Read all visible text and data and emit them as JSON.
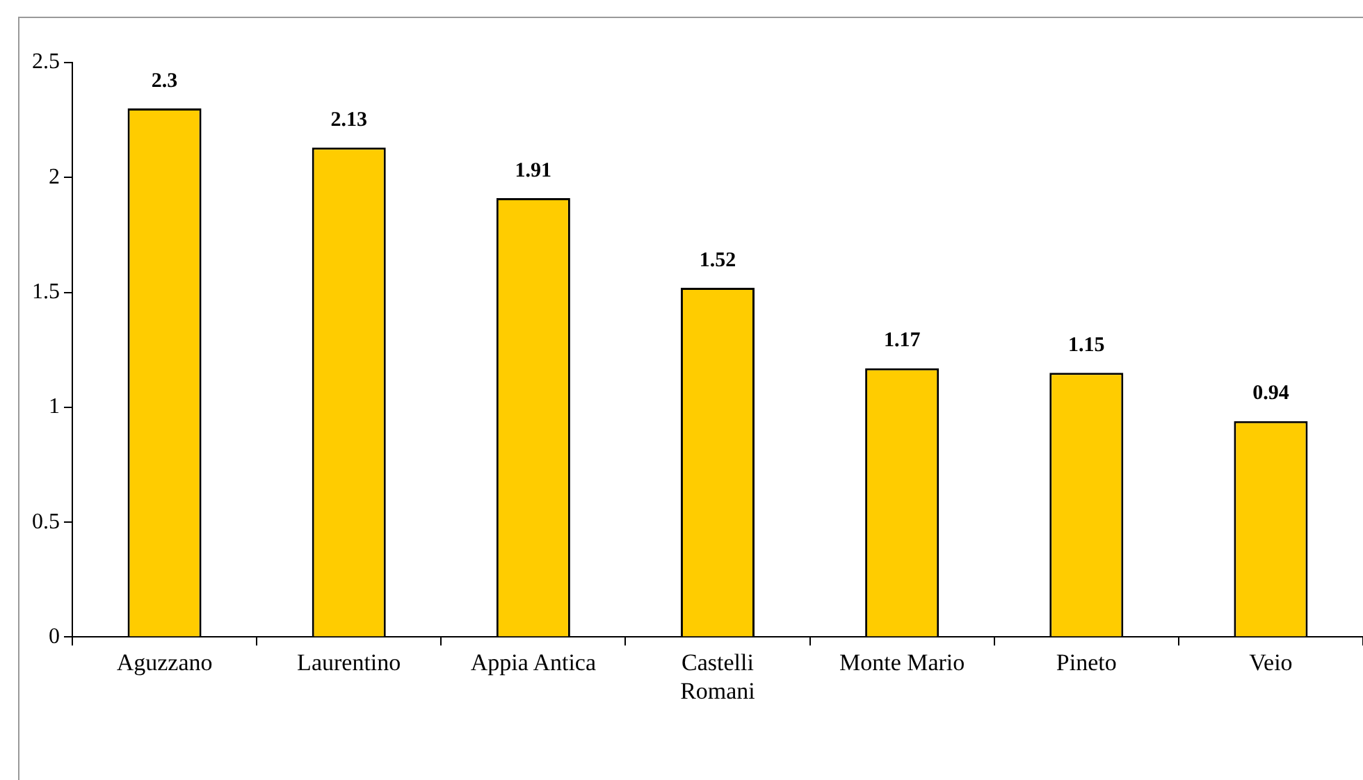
{
  "chart_data": {
    "type": "bar",
    "categories": [
      "Aguzzano",
      "Laurentino",
      "Appia Antica",
      "Castelli Romani",
      "Monte Mario",
      "Pineto",
      "Veio"
    ],
    "values": [
      2.3,
      2.13,
      1.91,
      1.52,
      1.17,
      1.15,
      0.94
    ],
    "color": "#ffcc00",
    "ylim": [
      0,
      2.5
    ],
    "yticks": [
      0,
      0.5,
      1,
      1.5,
      2,
      2.5
    ],
    "grid": false,
    "legend": false,
    "data_labels": true
  }
}
